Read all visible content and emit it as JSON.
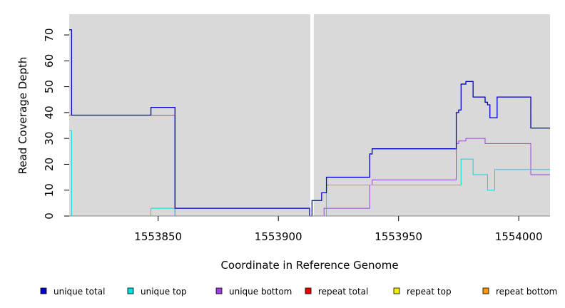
{
  "chart_data": {
    "type": "line",
    "step": true,
    "xlabel": "Coordinate in Reference Genome",
    "ylabel": "Read Coverage Depth",
    "xlim": [
      1553813,
      1554013
    ],
    "ylim": [
      0,
      78
    ],
    "xticks": [
      1553850,
      1553900,
      1553950,
      1554000
    ],
    "yticks": [
      0,
      10,
      20,
      30,
      40,
      50,
      60,
      70
    ],
    "background": "#d9d9d9",
    "gap_marker_x": 1553914,
    "legend_position": "bottom",
    "series": [
      {
        "name": "unique total",
        "color": "#0000cc",
        "points": [
          [
            1553813,
            72
          ],
          [
            1553814,
            39
          ],
          [
            1553847,
            42
          ],
          [
            1553857,
            3
          ],
          [
            1553913,
            0
          ],
          [
            1553914,
            6
          ],
          [
            1553918,
            9
          ],
          [
            1553920,
            15
          ],
          [
            1553938,
            24
          ],
          [
            1553939,
            26
          ],
          [
            1553974,
            40
          ],
          [
            1553975,
            41
          ],
          [
            1553976,
            51
          ],
          [
            1553978,
            52
          ],
          [
            1553981,
            46
          ],
          [
            1553986,
            44
          ],
          [
            1553987,
            43
          ],
          [
            1553988,
            38
          ],
          [
            1553991,
            46
          ],
          [
            1554005,
            34
          ],
          [
            1554013,
            34
          ]
        ]
      },
      {
        "name": "unique top",
        "color": "#00dddd",
        "points": [
          [
            1553813,
            33
          ],
          [
            1553814,
            0
          ],
          [
            1553847,
            3
          ],
          [
            1553857,
            0
          ],
          [
            1553920,
            12
          ],
          [
            1553976,
            22
          ],
          [
            1553981,
            16
          ],
          [
            1553987,
            10
          ],
          [
            1553990,
            18
          ],
          [
            1554013,
            18
          ]
        ]
      },
      {
        "name": "unique bottom",
        "color": "#a040e0",
        "points": [
          [
            1553813,
            39
          ],
          [
            1553847,
            39
          ],
          [
            1553857,
            0
          ],
          [
            1553919,
            3
          ],
          [
            1553938,
            12
          ],
          [
            1553939,
            14
          ],
          [
            1553974,
            28
          ],
          [
            1553975,
            29
          ],
          [
            1553978,
            30
          ],
          [
            1553986,
            28
          ],
          [
            1554005,
            16
          ],
          [
            1554013,
            16
          ]
        ]
      },
      {
        "name": "repeat total",
        "color": "#ee0000",
        "points": [
          [
            1553813,
            0
          ],
          [
            1554013,
            0
          ]
        ]
      },
      {
        "name": "repeat top",
        "color": "#eeee00",
        "points": [
          [
            1553813,
            0
          ],
          [
            1554013,
            0
          ]
        ]
      },
      {
        "name": "repeat bottom",
        "color": "#ff9900",
        "points": [
          [
            1553813,
            0
          ],
          [
            1554013,
            0
          ]
        ]
      }
    ]
  }
}
